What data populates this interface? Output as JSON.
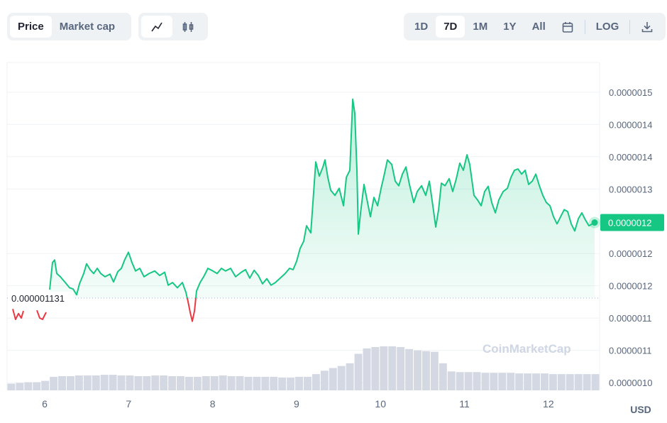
{
  "toolbar": {
    "metric_tabs": [
      "Price",
      "Market cap"
    ],
    "selected_metric": 0,
    "ranges": [
      "1D",
      "7D",
      "1M",
      "1Y",
      "All"
    ],
    "selected_range": 1,
    "log_label": "LOG"
  },
  "chart_data": {
    "type": "line",
    "x": [
      5.62,
      5.653,
      5.687,
      5.721,
      5.746,
      5.83,
      5.907,
      5.941,
      5.975,
      6.017,
      6.04,
      6.059,
      6.093,
      6.118,
      6.144,
      6.186,
      6.245,
      6.296,
      6.338,
      6.38,
      6.414,
      6.465,
      6.499,
      6.541,
      6.583,
      6.626,
      6.668,
      6.719,
      6.778,
      6.82,
      6.871,
      6.913,
      6.955,
      6.997,
      7.04,
      7.082,
      7.133,
      7.183,
      7.243,
      7.31,
      7.369,
      7.429,
      7.471,
      7.522,
      7.581,
      7.64,
      7.682,
      7.708,
      7.733,
      7.758,
      7.784,
      7.809,
      7.851,
      7.902,
      7.944,
      8.003,
      8.054,
      8.105,
      8.155,
      8.215,
      8.274,
      8.341,
      8.392,
      8.443,
      8.494,
      8.544,
      8.595,
      8.646,
      8.696,
      8.747,
      8.806,
      8.865,
      8.916,
      8.959,
      9.001,
      9.043,
      9.085,
      9.119,
      9.17,
      9.204,
      9.229,
      9.271,
      9.314,
      9.339,
      9.373,
      9.407,
      9.457,
      9.508,
      9.559,
      9.593,
      9.635,
      9.669,
      9.694,
      9.719,
      9.736,
      9.762,
      9.804,
      9.846,
      9.88,
      9.922,
      9.965,
      10.007,
      10.041,
      10.083,
      10.134,
      10.176,
      10.218,
      10.261,
      10.303,
      10.345,
      10.396,
      10.438,
      10.489,
      10.539,
      10.582,
      10.624,
      10.658,
      10.692,
      10.725,
      10.768,
      10.818,
      10.86,
      10.903,
      10.945,
      10.987,
      11.03,
      11.063,
      11.114,
      11.156,
      11.199,
      11.241,
      11.283,
      11.325,
      11.368,
      11.41,
      11.461,
      11.512,
      11.554,
      11.596,
      11.638,
      11.681,
      11.723,
      11.765,
      11.808,
      11.85,
      11.892,
      11.934,
      11.976,
      12.019,
      12.061,
      12.103,
      12.145,
      12.188,
      12.23,
      12.272,
      12.314,
      12.357,
      12.399,
      12.441,
      12.483,
      12.551
    ],
    "series": [
      {
        "color": "#16c784",
        "values": [
          1.114e-06,
          1.098e-06,
          1.107e-06,
          1.1e-06,
          1.111e-06,
          null,
          1.112e-06,
          1.1e-06,
          1.098e-06,
          1.109e-06,
          null,
          1.144e-06,
          1.186e-06,
          1.19e-06,
          1.169e-06,
          1.164e-06,
          1.155e-06,
          1.147e-06,
          1.145e-06,
          1.136e-06,
          1.153e-06,
          1.169e-06,
          1.184e-06,
          1.175e-06,
          1.169e-06,
          1.177e-06,
          1.169e-06,
          1.164e-06,
          1.168e-06,
          1.156e-06,
          1.172e-06,
          1.177e-06,
          1.191e-06,
          1.202e-06,
          1.186e-06,
          1.173e-06,
          1.177e-06,
          1.164e-06,
          1.169e-06,
          1.173e-06,
          1.166e-06,
          1.171e-06,
          1.151e-06,
          1.155e-06,
          1.147e-06,
          1.155e-06,
          1.14e-06,
          1.125e-06,
          1.109e-06,
          1.095e-06,
          1.111e-06,
          1.142e-06,
          1.155e-06,
          1.166e-06,
          1.177e-06,
          1.173e-06,
          1.169e-06,
          1.177e-06,
          1.173e-06,
          1.177e-06,
          1.164e-06,
          1.171e-06,
          1.175e-06,
          1.162e-06,
          1.174e-06,
          1.166e-06,
          1.153e-06,
          1.161e-06,
          1.151e-06,
          1.155e-06,
          1.162e-06,
          1.169e-06,
          1.177e-06,
          1.175e-06,
          1.188e-06,
          1.208e-06,
          1.219e-06,
          1.243e-06,
          1.232e-06,
          1.296e-06,
          1.342e-06,
          1.32e-06,
          1.334e-06,
          1.345e-06,
          1.318e-06,
          1.298e-06,
          1.29e-06,
          1.301e-06,
          1.274e-06,
          1.318e-06,
          1.329e-06,
          1.439e-06,
          1.417e-06,
          1.329e-06,
          1.23e-06,
          1.263e-06,
          1.307e-06,
          1.279e-06,
          1.257e-06,
          1.287e-06,
          1.274e-06,
          1.301e-06,
          1.32e-06,
          1.345e-06,
          1.338e-06,
          1.312e-06,
          1.305e-06,
          1.323e-06,
          1.334e-06,
          1.307e-06,
          1.279e-06,
          1.296e-06,
          1.305e-06,
          1.29e-06,
          1.312e-06,
          1.274e-06,
          1.241e-06,
          1.268e-06,
          1.309e-06,
          1.305e-06,
          1.316e-06,
          1.296e-06,
          1.316e-06,
          1.34e-06,
          1.329e-06,
          1.353e-06,
          1.338e-06,
          1.29e-06,
          1.283e-06,
          1.274e-06,
          1.296e-06,
          1.304e-06,
          1.279e-06,
          1.263e-06,
          1.283e-06,
          1.296e-06,
          1.301e-06,
          1.318e-06,
          1.329e-06,
          1.331e-06,
          1.323e-06,
          1.329e-06,
          1.307e-06,
          1.312e-06,
          1.323e-06,
          1.305e-06,
          1.29e-06,
          1.279e-06,
          1.274e-06,
          1.257e-06,
          1.246e-06,
          1.257e-06,
          1.268e-06,
          1.265e-06,
          1.246e-06,
          1.235e-06,
          1.254e-06,
          1.263e-06,
          1.252e-06,
          1.243e-06,
          1.248e-06
        ]
      }
    ],
    "down_color": "#ea3943",
    "reference_price": {
      "value": 1.131e-06,
      "label": "0.000001131"
    },
    "current_price": {
      "value": 1.248e-06,
      "label": "0.0000012"
    },
    "xlim": [
      5.552,
      12.61
    ],
    "xticks": [
      6,
      7,
      8,
      9,
      10,
      11,
      12
    ],
    "ylim": [
      9.88e-07,
      1.496e-06
    ],
    "yticks": [
      {
        "value": 1e-06,
        "label": "0.0000010"
      },
      {
        "value": 1.05e-06,
        "label": "0.0000011"
      },
      {
        "value": 1.1e-06,
        "label": "0.0000011"
      },
      {
        "value": 1.15e-06,
        "label": "0.0000012"
      },
      {
        "value": 1.2e-06,
        "label": "0.0000012"
      },
      {
        "value": 1.3e-06,
        "label": "0.0000013"
      },
      {
        "value": 1.35e-06,
        "label": "0.0000014"
      },
      {
        "value": 1.4e-06,
        "label": "0.0000014"
      },
      {
        "value": 1.45e-06,
        "label": "0.0000015"
      }
    ],
    "grid": true,
    "volume": {
      "color": "#d3d8e3",
      "values": [
        10,
        11,
        12,
        12,
        14,
        20,
        21,
        21,
        22,
        22,
        22,
        23,
        23,
        22,
        22,
        21,
        21,
        22,
        22,
        21,
        21,
        20,
        20,
        21,
        21,
        22,
        21,
        21,
        20,
        20,
        20,
        20,
        19,
        19,
        20,
        20,
        24,
        29,
        33,
        36,
        40,
        54,
        62,
        64,
        65,
        65,
        64,
        61,
        59,
        58,
        57,
        40,
        28,
        27,
        27,
        27,
        26,
        26,
        26,
        26,
        25,
        25,
        25,
        25,
        24,
        24,
        24,
        24,
        24,
        24
      ]
    },
    "currency_label": "USD",
    "watermark": "CoinMarketCap"
  }
}
